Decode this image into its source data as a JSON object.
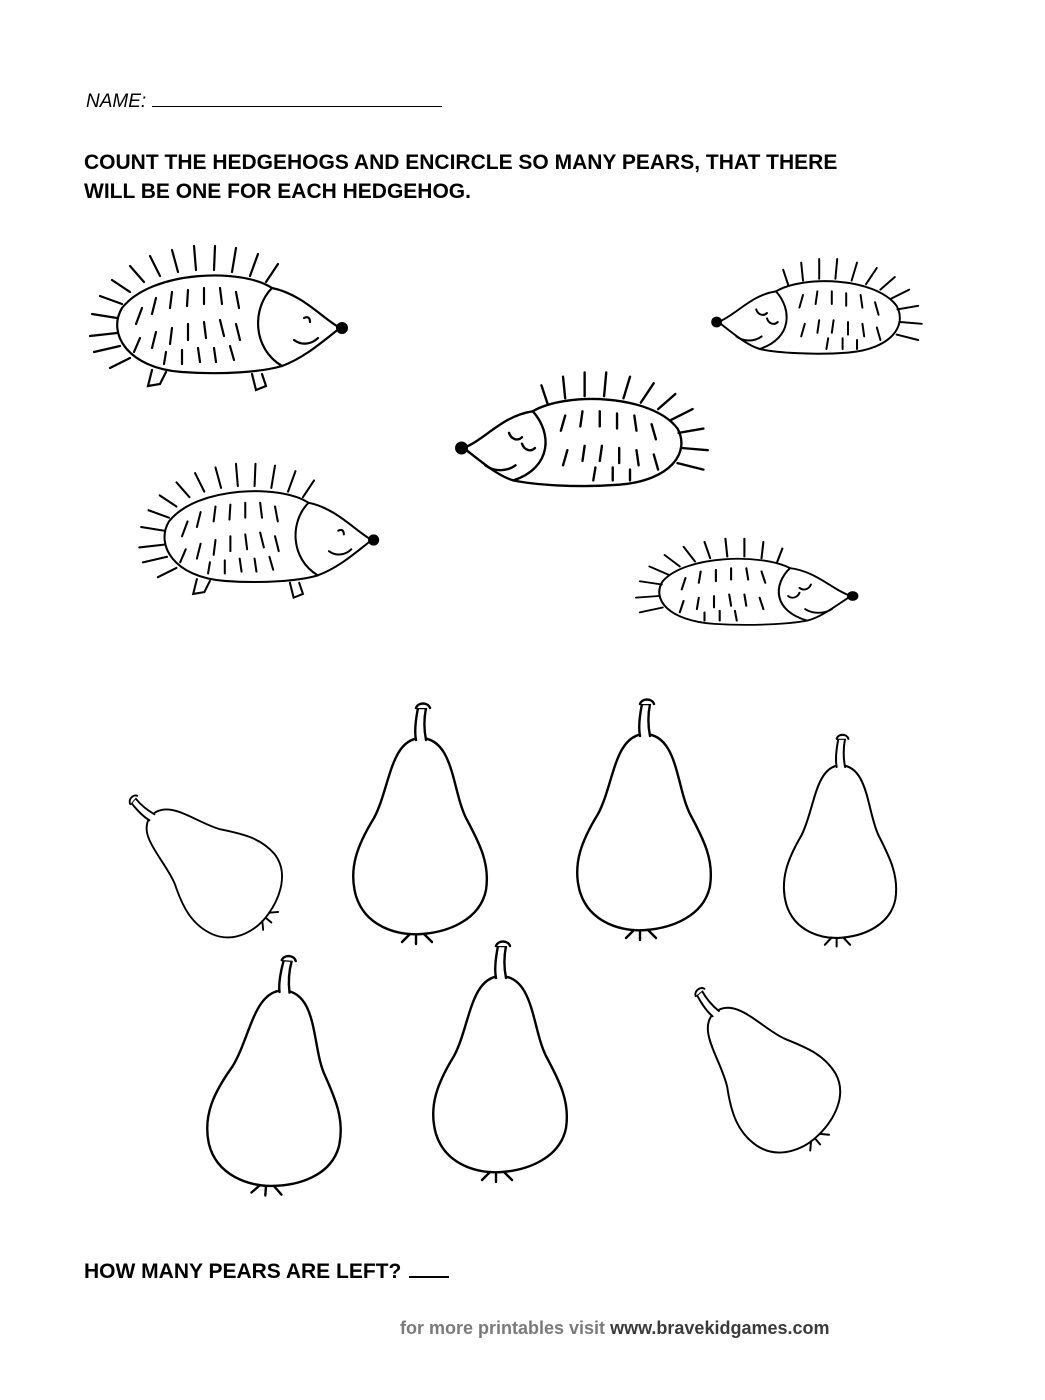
{
  "worksheet": {
    "name_label": "NAME:",
    "instruction_line1": "COUNT THE HEDGEHOGS AND ENCIRCLE  SO MANY PEARS, THAT THERE",
    "instruction_line2": "WILL BE ONE FOR EACH HEDGEHOG.",
    "question": "HOW MANY PEARS ARE LEFT?",
    "footer_prefix": "for more printables visit",
    "footer_site": "www.bravekidgames.com"
  },
  "hedgehogs": [
    {
      "facing": "right",
      "face": "open-eyes"
    },
    {
      "facing": "left",
      "face": "closed-eyes"
    },
    {
      "facing": "left",
      "face": "closed-eyes"
    },
    {
      "facing": "right",
      "face": "open-eyes"
    },
    {
      "facing": "right",
      "face": "closed-eyes"
    }
  ],
  "pears": [
    {
      "tilt": "left"
    },
    {
      "tilt": "upright"
    },
    {
      "tilt": "upright"
    },
    {
      "tilt": "upright"
    },
    {
      "tilt": "upright"
    },
    {
      "tilt": "upright"
    },
    {
      "tilt": "right"
    }
  ],
  "colors": {
    "ink": "#000000",
    "footer_grey": "#7a7a7a",
    "footer_site": "#3a3a3a"
  }
}
